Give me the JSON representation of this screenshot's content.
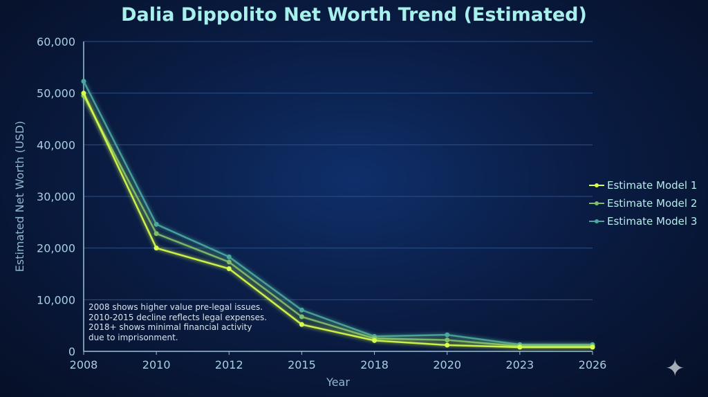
{
  "chart_data": {
    "type": "line",
    "title": "Dalia Dippolito Net Worth Trend (Estimated)",
    "xlabel": "Year",
    "ylabel": "Estimated Net Worth (USD)",
    "categories": [
      "2008",
      "2010",
      "2012",
      "2015",
      "2018",
      "2020",
      "2023",
      "2026"
    ],
    "ylim": [
      0,
      60000
    ],
    "yticks": [
      0,
      10000,
      20000,
      30000,
      40000,
      50000,
      60000
    ],
    "ytick_labels": [
      "0",
      "10,000",
      "20,000",
      "30,000",
      "40,000",
      "50,000",
      "60,000"
    ],
    "grid": true,
    "legend_position": "right",
    "series": [
      {
        "name": "Estimate Model 1",
        "color": "#d8ff4a",
        "values": [
          50000,
          20000,
          16000,
          5200,
          2100,
          1200,
          800,
          800
        ]
      },
      {
        "name": "Estimate Model 2",
        "color": "#7fbf6a",
        "values": [
          49500,
          22800,
          17300,
          6700,
          2500,
          2200,
          1000,
          1000
        ]
      },
      {
        "name": "Estimate Model 3",
        "color": "#4aa8a0",
        "values": [
          52300,
          24600,
          18300,
          8000,
          2900,
          3200,
          1300,
          1300
        ]
      }
    ],
    "annotation": [
      "2008 shows higher value pre-legal issues.",
      "2010-2015 decline reflects legal expenses.",
      "2018+ shows minimal financial activity",
      "due to imprisonment."
    ]
  },
  "icons": {
    "corner": "sparkle-icon"
  }
}
